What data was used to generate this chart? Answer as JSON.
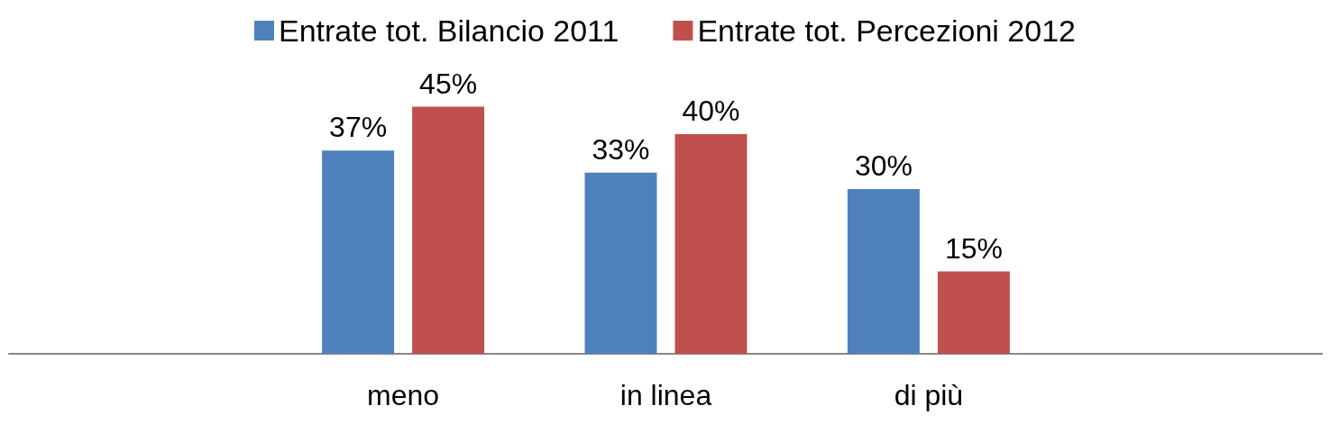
{
  "chart_data": {
    "type": "bar",
    "categories": [
      null,
      "meno",
      "in linea",
      "di più",
      null
    ],
    "series": [
      {
        "name": "Entrate tot. Bilancio 2011",
        "color": "#4f81bd",
        "values": [
          null,
          37,
          33,
          30,
          null
        ],
        "value_labels": [
          null,
          "37%",
          "33%",
          "30%",
          null
        ]
      },
      {
        "name": "Entrate tot. Percezioni 2012",
        "color": "#c0504d",
        "values": [
          null,
          45,
          40,
          15,
          null
        ],
        "value_labels": [
          null,
          "45%",
          "40%",
          "15%",
          null
        ]
      }
    ],
    "legend": "top"
  }
}
